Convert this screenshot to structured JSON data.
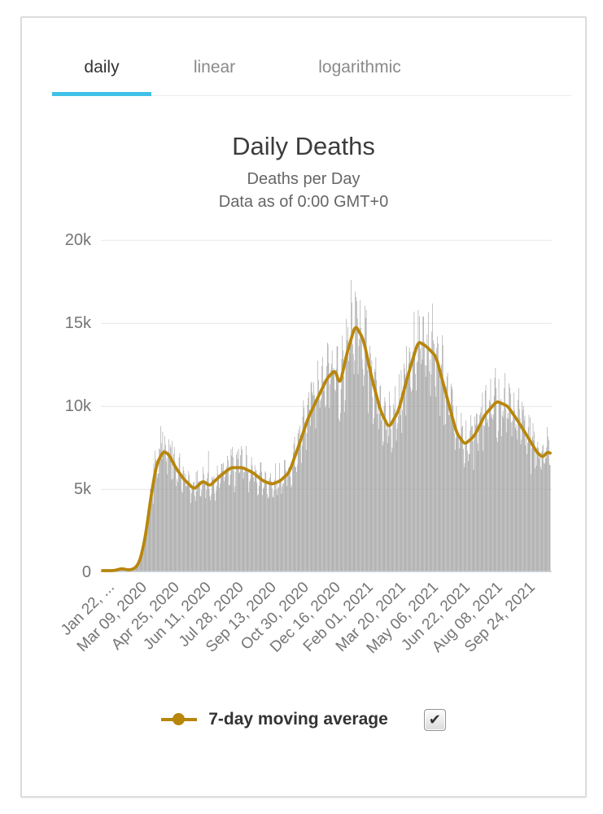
{
  "tabs": {
    "items": [
      {
        "label": "daily",
        "active": true
      },
      {
        "label": "linear",
        "active": false
      },
      {
        "label": "logarithmic",
        "active": false
      }
    ]
  },
  "header": {
    "title": "Daily Deaths",
    "subtitle": "Deaths per Day",
    "data_note": "Data as of 0:00 GMT+0"
  },
  "legend": {
    "label": "7-day moving average",
    "checked": true,
    "checkbox_glyph": "✔"
  },
  "colors": {
    "accent": "#3fc1e8",
    "bar": "#a0a0a0",
    "line": "#b8860b",
    "grid": "#e7e7e7",
    "axis": "#ccd5da",
    "tick_text": "#757575",
    "active_tab": "#333333",
    "inactive_tab": "#8a8a8a"
  },
  "chart_data": {
    "type": "bar",
    "title": "Daily Deaths",
    "subtitle": "Deaths per Day",
    "x_start": "2020-01-22",
    "x_end": "2021-11-07",
    "x_tick_interval_days": 47,
    "x_tick_labels": [
      "Jan 22, ...",
      "Mar 09, 2020",
      "Apr 25, 2020",
      "Jun 11, 2020",
      "Jul 28, 2020",
      "Sep 13, 2020",
      "Oct 30, 2020",
      "Dec 16, 2020",
      "Feb 01, 2021",
      "Mar 20, 2021",
      "May 06, 2021",
      "Jun 22, 2021",
      "Aug 08, 2021",
      "Sep 24, 2021"
    ],
    "ylim": [
      0,
      20000
    ],
    "y_ticks": [
      {
        "label": "0",
        "value": 0
      },
      {
        "label": "5k",
        "value": 5000
      },
      {
        "label": "10k",
        "value": 10000
      },
      {
        "label": "15k",
        "value": 15000
      },
      {
        "label": "20k",
        "value": 20000
      }
    ],
    "grid": true,
    "legend_position": "bottom",
    "series": [
      {
        "name": "daily deaths",
        "type": "bar",
        "color": "#a0a0a0",
        "derived_from": "daily bars oscillate around the 7-day moving average with a weekly reporting cycle of roughly +/-15%",
        "outliers": [
          [
            "2020-04-16",
            8800
          ],
          [
            "2020-06-25",
            7300
          ],
          [
            "2020-08-13",
            7400
          ],
          [
            "2021-01-20",
            17600
          ],
          [
            "2021-01-26",
            16900
          ],
          [
            "2021-04-28",
            15800
          ],
          [
            "2021-05-05",
            15400
          ]
        ]
      },
      {
        "name": "7-day moving average",
        "type": "line",
        "color": "#b8860b",
        "points": [
          [
            "2020-01-22",
            30
          ],
          [
            "2020-02-01",
            90
          ],
          [
            "2020-02-10",
            120
          ],
          [
            "2020-02-19",
            220
          ],
          [
            "2020-03-01",
            130
          ],
          [
            "2020-03-10",
            250
          ],
          [
            "2020-03-17",
            700
          ],
          [
            "2020-03-25",
            2200
          ],
          [
            "2020-04-02",
            4600
          ],
          [
            "2020-04-10",
            6500
          ],
          [
            "2020-04-20",
            7300
          ],
          [
            "2020-04-28",
            7100
          ],
          [
            "2020-05-08",
            6300
          ],
          [
            "2020-05-20",
            5600
          ],
          [
            "2020-06-04",
            5000
          ],
          [
            "2020-06-17",
            5500
          ],
          [
            "2020-06-27",
            5200
          ],
          [
            "2020-07-12",
            5800
          ],
          [
            "2020-07-28",
            6300
          ],
          [
            "2020-08-14",
            6300
          ],
          [
            "2020-08-29",
            6000
          ],
          [
            "2020-09-13",
            5500
          ],
          [
            "2020-09-26",
            5300
          ],
          [
            "2020-10-08",
            5500
          ],
          [
            "2020-10-21",
            6000
          ],
          [
            "2020-11-04",
            7600
          ],
          [
            "2020-11-18",
            9300
          ],
          [
            "2020-12-03",
            10600
          ],
          [
            "2020-12-16",
            11700
          ],
          [
            "2020-12-28",
            12200
          ],
          [
            "2021-01-03",
            11200
          ],
          [
            "2021-01-13",
            13100
          ],
          [
            "2021-01-26",
            14900
          ],
          [
            "2021-02-07",
            14000
          ],
          [
            "2021-02-19",
            11700
          ],
          [
            "2021-03-04",
            9700
          ],
          [
            "2021-03-16",
            8700
          ],
          [
            "2021-03-30",
            9700
          ],
          [
            "2021-04-14",
            12000
          ],
          [
            "2021-04-28",
            13900
          ],
          [
            "2021-05-10",
            13600
          ],
          [
            "2021-05-24",
            13000
          ],
          [
            "2021-06-08",
            10700
          ],
          [
            "2021-06-23",
            8400
          ],
          [
            "2021-07-05",
            7700
          ],
          [
            "2021-07-19",
            8200
          ],
          [
            "2021-08-04",
            9500
          ],
          [
            "2021-08-21",
            10300
          ],
          [
            "2021-09-06",
            10000
          ],
          [
            "2021-09-21",
            9100
          ],
          [
            "2021-10-06",
            8100
          ],
          [
            "2021-10-19",
            7200
          ],
          [
            "2021-10-28",
            6900
          ],
          [
            "2021-11-03",
            7300
          ],
          [
            "2021-11-07",
            7100
          ]
        ]
      }
    ]
  }
}
